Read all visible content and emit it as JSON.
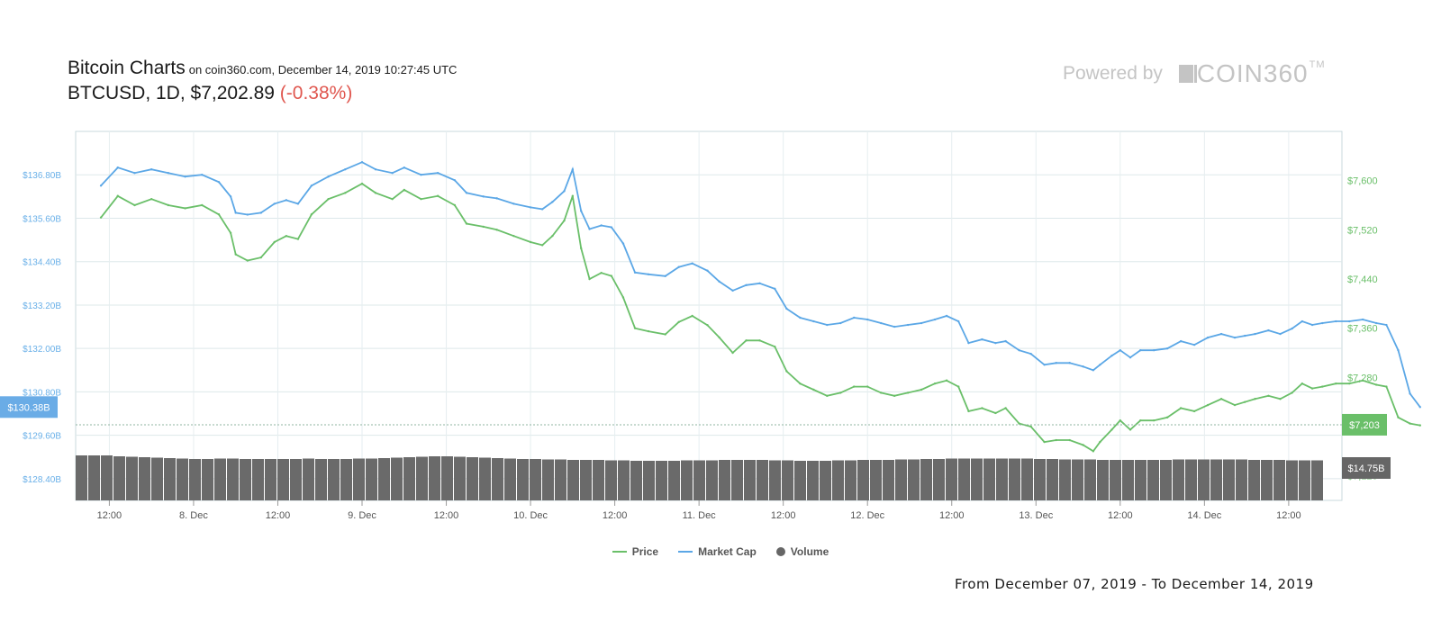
{
  "header": {
    "title": "Bitcoin Charts",
    "subtitle": "on coin360.com, December 14, 2019 10:27:45 UTC",
    "ticker": "BTCUSD, 1D, $7,202.89",
    "change": "(-0.38%)"
  },
  "branding": {
    "powered_by": "Powered by",
    "logo_text": "COIN360",
    "logo_tm": "TM"
  },
  "range_text": "From December 07, 2019 - To December 14, 2019",
  "legend": [
    {
      "label": "Price",
      "color": "#6abf69"
    },
    {
      "label": "Market Cap",
      "color": "#5ba7e6"
    },
    {
      "label": "Volume",
      "color": "#666666"
    }
  ],
  "chart_data": {
    "type": "line",
    "x_tick_labels": [
      "12:00",
      "8. Dec",
      "12:00",
      "9. Dec",
      "12:00",
      "10. Dec",
      "12:00",
      "11. Dec",
      "12:00",
      "12. Dec",
      "12:00",
      "13. Dec",
      "12:00",
      "14. Dec",
      "12:00"
    ],
    "x_range_days": [
      0.5,
      7.5
    ],
    "left_axis": {
      "label": "Market Cap",
      "ticks": [
        "$128.40B",
        "$129.60B",
        "$130.80B",
        "$132.00B",
        "$133.20B",
        "$134.40B",
        "$135.60B",
        "$136.80B"
      ],
      "range": [
        127.8,
        138.0
      ],
      "current_value": 130.38,
      "current_label": "$130.38B"
    },
    "right_axis": {
      "label": "Price",
      "ticks": [
        "$7,120",
        "$7,200",
        "$7,280",
        "$7,360",
        "$7,440",
        "$7,520",
        "$7,600"
      ],
      "range": [
        7080,
        7680
      ],
      "current_value": 7203,
      "current_label": "$7,203",
      "volume_label": "$14.75B"
    },
    "series": [
      {
        "name": "Price",
        "color": "#6abf69",
        "axis": "right",
        "points": [
          [
            0.45,
            7540
          ],
          [
            0.55,
            7575
          ],
          [
            0.65,
            7560
          ],
          [
            0.75,
            7570
          ],
          [
            0.85,
            7560
          ],
          [
            0.95,
            7555
          ],
          [
            1.05,
            7560
          ],
          [
            1.15,
            7545
          ],
          [
            1.22,
            7515
          ],
          [
            1.25,
            7480
          ],
          [
            1.32,
            7470
          ],
          [
            1.4,
            7475
          ],
          [
            1.48,
            7500
          ],
          [
            1.55,
            7510
          ],
          [
            1.62,
            7505
          ],
          [
            1.7,
            7545
          ],
          [
            1.8,
            7570
          ],
          [
            1.9,
            7580
          ],
          [
            2.0,
            7595
          ],
          [
            2.08,
            7580
          ],
          [
            2.18,
            7570
          ],
          [
            2.25,
            7585
          ],
          [
            2.35,
            7570
          ],
          [
            2.45,
            7575
          ],
          [
            2.55,
            7560
          ],
          [
            2.62,
            7530
          ],
          [
            2.72,
            7525
          ],
          [
            2.8,
            7520
          ],
          [
            2.9,
            7510
          ],
          [
            3.0,
            7500
          ],
          [
            3.07,
            7495
          ],
          [
            3.13,
            7510
          ],
          [
            3.2,
            7535
          ],
          [
            3.25,
            7575
          ],
          [
            3.3,
            7490
          ],
          [
            3.35,
            7440
          ],
          [
            3.42,
            7450
          ],
          [
            3.48,
            7445
          ],
          [
            3.55,
            7410
          ],
          [
            3.62,
            7360
          ],
          [
            3.7,
            7355
          ],
          [
            3.8,
            7350
          ],
          [
            3.88,
            7370
          ],
          [
            3.96,
            7380
          ],
          [
            4.05,
            7365
          ],
          [
            4.12,
            7345
          ],
          [
            4.2,
            7320
          ],
          [
            4.28,
            7340
          ],
          [
            4.36,
            7340
          ],
          [
            4.45,
            7330
          ],
          [
            4.52,
            7290
          ],
          [
            4.6,
            7270
          ],
          [
            4.68,
            7260
          ],
          [
            4.76,
            7250
          ],
          [
            4.84,
            7255
          ],
          [
            4.92,
            7265
          ],
          [
            5.0,
            7265
          ],
          [
            5.08,
            7255
          ],
          [
            5.16,
            7250
          ],
          [
            5.24,
            7255
          ],
          [
            5.32,
            7260
          ],
          [
            5.4,
            7270
          ],
          [
            5.47,
            7275
          ],
          [
            5.54,
            7265
          ],
          [
            5.6,
            7225
          ],
          [
            5.68,
            7230
          ],
          [
            5.76,
            7222
          ],
          [
            5.82,
            7230
          ],
          [
            5.9,
            7205
          ],
          [
            5.97,
            7200
          ],
          [
            6.05,
            7175
          ],
          [
            6.12,
            7178
          ],
          [
            6.2,
            7178
          ],
          [
            6.28,
            7170
          ],
          [
            6.34,
            7160
          ],
          [
            6.38,
            7175
          ],
          [
            6.45,
            7195
          ],
          [
            6.5,
            7210
          ],
          [
            6.56,
            7195
          ],
          [
            6.62,
            7210
          ],
          [
            6.7,
            7210
          ],
          [
            6.78,
            7215
          ],
          [
            6.86,
            7230
          ],
          [
            6.94,
            7225
          ],
          [
            7.02,
            7235
          ],
          [
            7.1,
            7245
          ],
          [
            7.18,
            7235
          ],
          [
            7.24,
            7240
          ],
          [
            7.3,
            7245
          ],
          [
            7.38,
            7250
          ],
          [
            7.45,
            7245
          ],
          [
            7.52,
            7255
          ],
          [
            7.58,
            7270
          ],
          [
            7.64,
            7262
          ],
          [
            7.7,
            7265
          ],
          [
            7.78,
            7270
          ],
          [
            7.86,
            7270
          ],
          [
            7.94,
            7275
          ],
          [
            8.02,
            7268
          ],
          [
            8.08,
            7265
          ],
          [
            8.15,
            7215
          ],
          [
            8.22,
            7205
          ],
          [
            8.28,
            7202
          ]
        ]
      },
      {
        "name": "Market Cap",
        "color": "#5ba7e6",
        "axis": "left",
        "points": [
          [
            0.45,
            136.5
          ],
          [
            0.55,
            137.0
          ],
          [
            0.65,
            136.85
          ],
          [
            0.75,
            136.95
          ],
          [
            0.85,
            136.85
          ],
          [
            0.95,
            136.75
          ],
          [
            1.05,
            136.8
          ],
          [
            1.15,
            136.6
          ],
          [
            1.22,
            136.2
          ],
          [
            1.25,
            135.75
          ],
          [
            1.32,
            135.7
          ],
          [
            1.4,
            135.75
          ],
          [
            1.48,
            136.0
          ],
          [
            1.55,
            136.1
          ],
          [
            1.62,
            136.0
          ],
          [
            1.7,
            136.5
          ],
          [
            1.8,
            136.75
          ],
          [
            1.9,
            136.95
          ],
          [
            2.0,
            137.15
          ],
          [
            2.08,
            136.95
          ],
          [
            2.18,
            136.85
          ],
          [
            2.25,
            137.0
          ],
          [
            2.35,
            136.8
          ],
          [
            2.45,
            136.85
          ],
          [
            2.55,
            136.65
          ],
          [
            2.62,
            136.3
          ],
          [
            2.72,
            136.2
          ],
          [
            2.8,
            136.15
          ],
          [
            2.9,
            136.0
          ],
          [
            3.0,
            135.9
          ],
          [
            3.07,
            135.85
          ],
          [
            3.13,
            136.05
          ],
          [
            3.2,
            136.35
          ],
          [
            3.25,
            136.95
          ],
          [
            3.3,
            135.8
          ],
          [
            3.35,
            135.3
          ],
          [
            3.42,
            135.4
          ],
          [
            3.48,
            135.35
          ],
          [
            3.55,
            134.9
          ],
          [
            3.62,
            134.1
          ],
          [
            3.7,
            134.05
          ],
          [
            3.8,
            134.0
          ],
          [
            3.88,
            134.25
          ],
          [
            3.96,
            134.35
          ],
          [
            4.05,
            134.15
          ],
          [
            4.12,
            133.85
          ],
          [
            4.2,
            133.6
          ],
          [
            4.28,
            133.75
          ],
          [
            4.36,
            133.8
          ],
          [
            4.45,
            133.65
          ],
          [
            4.52,
            133.1
          ],
          [
            4.6,
            132.85
          ],
          [
            4.68,
            132.75
          ],
          [
            4.76,
            132.65
          ],
          [
            4.84,
            132.7
          ],
          [
            4.92,
            132.85
          ],
          [
            5.0,
            132.8
          ],
          [
            5.08,
            132.7
          ],
          [
            5.16,
            132.6
          ],
          [
            5.24,
            132.65
          ],
          [
            5.32,
            132.7
          ],
          [
            5.4,
            132.8
          ],
          [
            5.47,
            132.9
          ],
          [
            5.54,
            132.75
          ],
          [
            5.6,
            132.15
          ],
          [
            5.68,
            132.25
          ],
          [
            5.76,
            132.15
          ],
          [
            5.82,
            132.2
          ],
          [
            5.9,
            131.95
          ],
          [
            5.97,
            131.85
          ],
          [
            6.05,
            131.55
          ],
          [
            6.12,
            131.6
          ],
          [
            6.2,
            131.6
          ],
          [
            6.28,
            131.5
          ],
          [
            6.34,
            131.4
          ],
          [
            6.38,
            131.55
          ],
          [
            6.45,
            131.8
          ],
          [
            6.5,
            131.95
          ],
          [
            6.56,
            131.75
          ],
          [
            6.62,
            131.95
          ],
          [
            6.7,
            131.95
          ],
          [
            6.78,
            132.0
          ],
          [
            6.86,
            132.2
          ],
          [
            6.94,
            132.1
          ],
          [
            7.02,
            132.3
          ],
          [
            7.1,
            132.4
          ],
          [
            7.18,
            132.3
          ],
          [
            7.24,
            132.35
          ],
          [
            7.3,
            132.4
          ],
          [
            7.38,
            132.5
          ],
          [
            7.45,
            132.4
          ],
          [
            7.52,
            132.55
          ],
          [
            7.58,
            132.75
          ],
          [
            7.64,
            132.65
          ],
          [
            7.7,
            132.7
          ],
          [
            7.78,
            132.75
          ],
          [
            7.86,
            132.75
          ],
          [
            7.94,
            132.8
          ],
          [
            8.02,
            132.7
          ],
          [
            8.08,
            132.65
          ],
          [
            8.15,
            131.95
          ],
          [
            8.22,
            130.75
          ],
          [
            8.28,
            130.38
          ]
        ]
      },
      {
        "name": "Volume",
        "color": "#666666",
        "axis": "volume",
        "values_relative": [
          1.0,
          1.0,
          1.0,
          0.98,
          0.97,
          0.96,
          0.95,
          0.94,
          0.93,
          0.92,
          0.92,
          0.93,
          0.93,
          0.92,
          0.92,
          0.92,
          0.92,
          0.92,
          0.93,
          0.92,
          0.92,
          0.92,
          0.93,
          0.93,
          0.94,
          0.95,
          0.96,
          0.97,
          0.98,
          0.98,
          0.97,
          0.96,
          0.95,
          0.94,
          0.93,
          0.92,
          0.92,
          0.91,
          0.91,
          0.9,
          0.9,
          0.9,
          0.89,
          0.89,
          0.88,
          0.88,
          0.88,
          0.88,
          0.89,
          0.89,
          0.89,
          0.9,
          0.9,
          0.9,
          0.9,
          0.89,
          0.89,
          0.88,
          0.88,
          0.88,
          0.89,
          0.89,
          0.9,
          0.9,
          0.9,
          0.91,
          0.91,
          0.92,
          0.92,
          0.93,
          0.93,
          0.93,
          0.93,
          0.93,
          0.93,
          0.93,
          0.92,
          0.92,
          0.91,
          0.91,
          0.91,
          0.9,
          0.9,
          0.9,
          0.9,
          0.9,
          0.9,
          0.91,
          0.91,
          0.91,
          0.91,
          0.91,
          0.91,
          0.9,
          0.9,
          0.9,
          0.89,
          0.89,
          0.89
        ]
      }
    ]
  }
}
